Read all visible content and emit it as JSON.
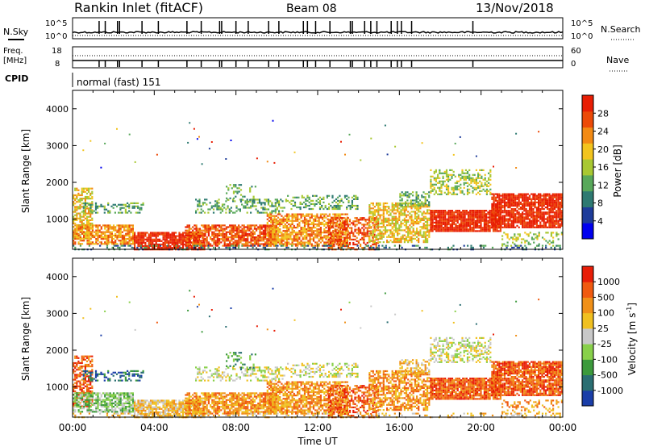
{
  "header": {
    "station": "Rankin Inlet (fitACF)",
    "beam": "Beam 08",
    "date": "13/Nov/2018"
  },
  "aux_panels": {
    "nsky_label": "N.Sky",
    "nsearch_label": "N.Search",
    "freq_label_1": "Freq.",
    "freq_label_2": "[MHz]",
    "nave_label": "Nave",
    "cpid_label": "CPID",
    "cpid_value": "normal (fast) 151",
    "noise_ticks_left": [
      "10^5",
      "10^0"
    ],
    "noise_ticks_right": [
      "10^5",
      "10^0"
    ],
    "freq_ticks": [
      "18",
      "8"
    ],
    "nave_ticks": [
      "60",
      "0"
    ]
  },
  "chart_data": [
    {
      "type": "heatmap",
      "name": "power",
      "ylabel": "Slant Range [km]",
      "yticks": [
        "4000",
        "3000",
        "2000",
        "1000"
      ],
      "ylim": [
        180,
        4500
      ],
      "xlim": [
        0,
        24
      ],
      "colorbar_label": "Power [dB]",
      "colorbar_ticks": [
        "28",
        "24",
        "20",
        "16",
        "12",
        "8",
        "4"
      ],
      "colors": [
        "#0000ee",
        "#1e3c9a",
        "#2e7a72",
        "#58a85a",
        "#a8c832",
        "#f2c41e",
        "#f28a14",
        "#ec4a08",
        "#e81e04"
      ]
    },
    {
      "type": "heatmap",
      "name": "velocity",
      "ylabel": "Slant Range [km]",
      "yticks": [
        "4000",
        "3000",
        "2000",
        "1000"
      ],
      "ylim": [
        180,
        4500
      ],
      "xlim": [
        0,
        24
      ],
      "xlabel": "Time UT",
      "xticks": [
        "00:00",
        "04:00",
        "08:00",
        "12:00",
        "16:00",
        "20:00",
        "00:00"
      ],
      "colorbar_label": "Velocity [m s^-1]",
      "colorbar_ticks": [
        "1000",
        "500",
        "100",
        "25",
        "-25",
        "-100",
        "-500",
        "-1000"
      ],
      "colors": [
        "#1a3ea8",
        "#2a6e72",
        "#3c9a3c",
        "#88d04a",
        "#c8c8c8",
        "#f0c020",
        "#f09018",
        "#f05a10",
        "#e81e08"
      ]
    }
  ]
}
